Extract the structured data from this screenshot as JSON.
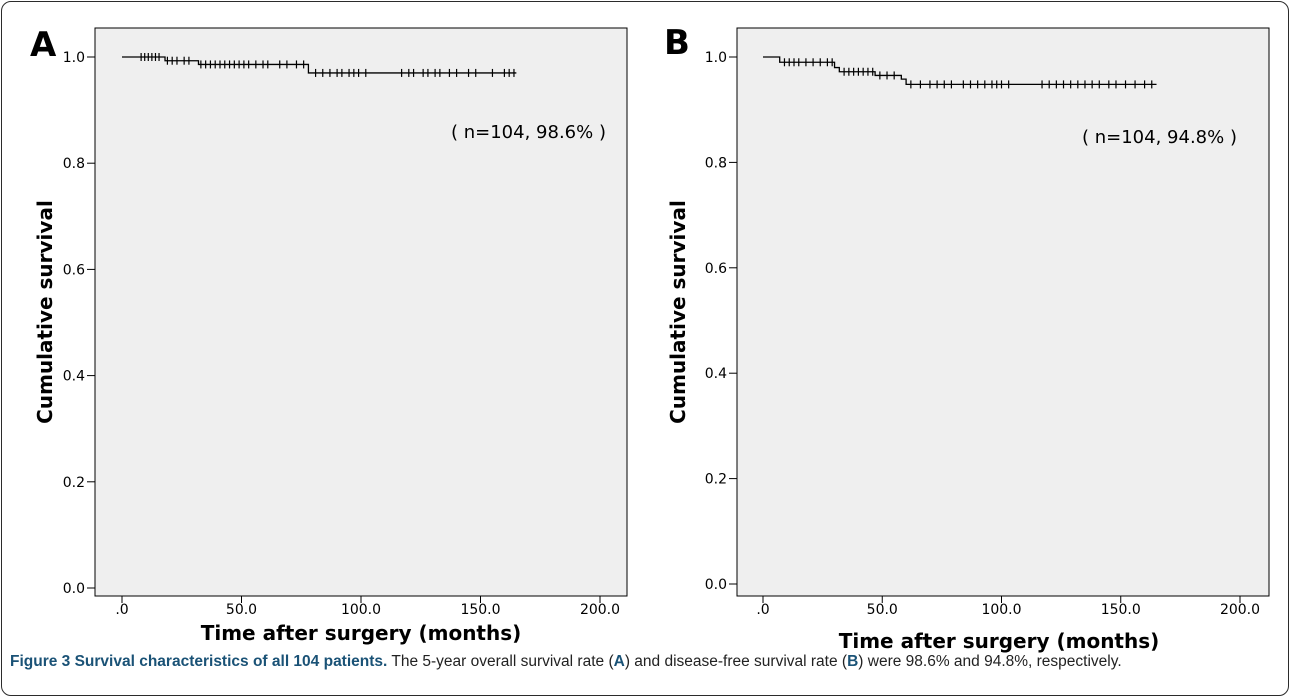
{
  "figure": {
    "caption_title": "Figure 3 Survival characteristics of all 104 patients.",
    "caption_seg1": " The 5-year overall survival rate (",
    "caption_ref_a": "A",
    "caption_seg2": ") and disease-free survival rate (",
    "caption_ref_b": "B",
    "caption_seg3": ") were 98.6% and 94.8%, respectively."
  },
  "colors": {
    "plot_bg": "#efefef",
    "line": "#000000",
    "caption_accent": "#1a5276"
  },
  "chart_data": [
    {
      "type": "line",
      "panel_label": "A",
      "xlabel": "Time after surgery (months)",
      "ylabel": "Cumulative survival",
      "xlim": [
        0,
        200
      ],
      "ylim": [
        0,
        1.0
      ],
      "x_ticks": [
        ".0",
        "50.0",
        "100.0",
        "150.0",
        "200.0"
      ],
      "y_ticks": [
        "0.0",
        "0.2",
        "0.4",
        "0.6",
        "0.8",
        "1.0"
      ],
      "annotation": "( n=104, 98.6% )",
      "step_curve": [
        [
          0,
          1.0
        ],
        [
          18,
          1.0
        ],
        [
          18,
          0.993
        ],
        [
          32,
          0.993
        ],
        [
          32,
          0.986
        ],
        [
          78,
          0.986
        ],
        [
          78,
          0.97
        ],
        [
          165,
          0.97
        ]
      ],
      "censored": [
        8,
        9.5,
        11,
        12.5,
        14,
        15.5,
        19,
        21,
        23,
        26,
        28,
        33,
        35,
        37,
        39,
        41,
        43,
        45,
        47,
        49,
        51,
        53,
        56,
        59,
        61,
        66,
        69,
        73,
        76,
        81,
        84,
        87,
        90,
        92,
        95,
        97,
        99,
        102,
        117,
        120,
        122,
        126,
        128,
        131,
        133,
        137,
        140,
        145,
        148,
        155,
        160,
        162,
        164
      ]
    },
    {
      "type": "line",
      "panel_label": "B",
      "xlabel": "Time after surgery (months)",
      "ylabel": "Cumulative survival",
      "xlim": [
        0,
        200
      ],
      "ylim": [
        0,
        1.0
      ],
      "x_ticks": [
        ".0",
        "50.0",
        "100.0",
        "150.0",
        "200.0"
      ],
      "y_ticks": [
        "0.0",
        "0.2",
        "0.4",
        "0.6",
        "0.8",
        "1.0"
      ],
      "annotation": "( n=104, 94.8% )",
      "step_curve": [
        [
          0,
          1.0
        ],
        [
          7,
          1.0
        ],
        [
          7,
          0.99
        ],
        [
          30,
          0.99
        ],
        [
          30,
          0.98
        ],
        [
          32,
          0.98
        ],
        [
          32,
          0.972
        ],
        [
          47,
          0.972
        ],
        [
          47,
          0.965
        ],
        [
          58,
          0.965
        ],
        [
          58,
          0.958
        ],
        [
          60,
          0.958
        ],
        [
          60,
          0.948
        ],
        [
          165,
          0.948
        ]
      ],
      "censored": [
        9,
        11,
        13,
        15,
        18,
        21,
        24,
        27,
        29,
        34,
        36,
        38,
        40,
        42,
        44,
        46,
        49,
        52,
        55,
        62,
        66,
        70,
        73,
        76,
        79,
        84,
        87,
        90,
        93,
        96,
        98,
        100,
        103,
        117,
        120,
        123,
        126,
        129,
        132,
        135,
        138,
        141,
        145,
        148,
        152,
        156,
        160,
        163
      ]
    }
  ]
}
